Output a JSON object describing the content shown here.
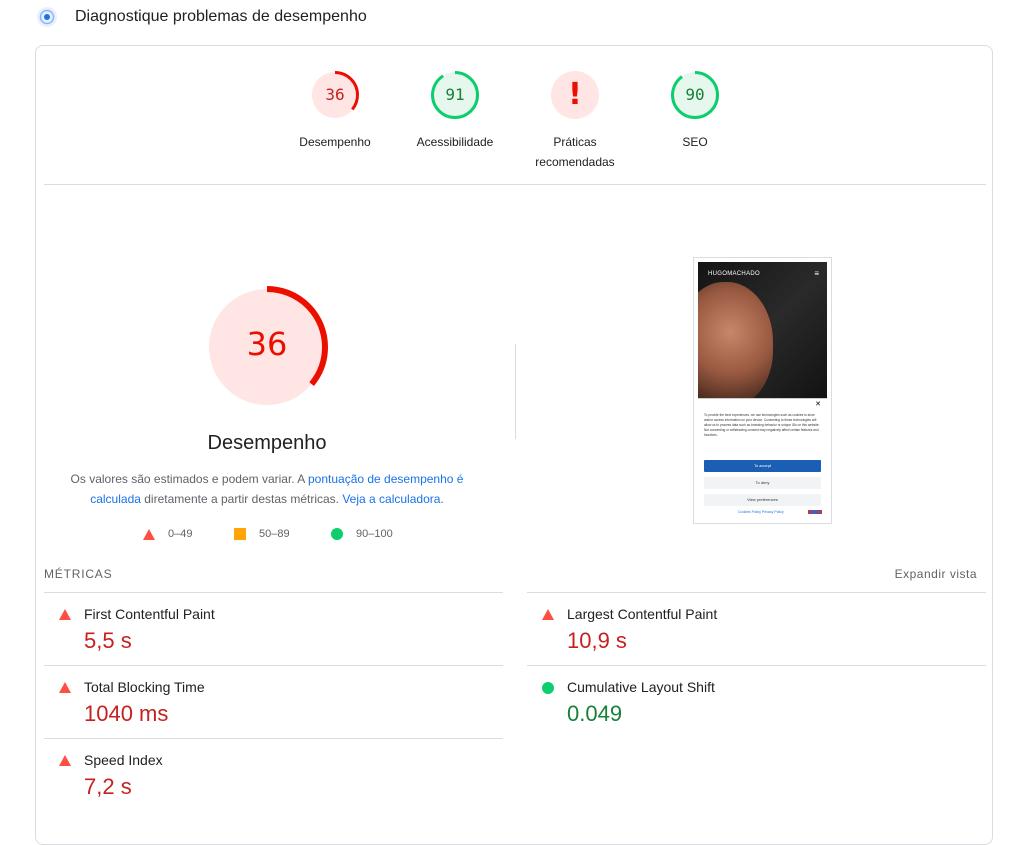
{
  "header": {
    "title": "Diagnostique problemas de desempenho",
    "icon": "performance-lighthouse-icon"
  },
  "categories": [
    {
      "score": "36",
      "label": "Desempenho",
      "status": "fail",
      "color": "#eb0f00"
    },
    {
      "score": "91",
      "label": "Acessibilidade",
      "status": "pass",
      "color": "#0cce6b"
    },
    {
      "score": "!",
      "label_line1": "Práticas",
      "label_line2": "recomendadas",
      "status": "error",
      "color": "#eb0f00"
    },
    {
      "score": "90",
      "label": "SEO",
      "status": "pass",
      "color": "#0cce6b"
    }
  ],
  "performance": {
    "score": "36",
    "score_fraction": 0.36,
    "label": "Desempenho",
    "desc_part1": "Os valores são estimados e podem variar. A ",
    "desc_link1": "pontuação de desempenho é calculada",
    "desc_part2": " diretamente a partir destas métricas. ",
    "desc_link2": "Veja a calculadora",
    "desc_end": "."
  },
  "legend": [
    {
      "range": "0–49",
      "shape": "triangle",
      "color": "#ff4e42"
    },
    {
      "range": "50–89",
      "shape": "square",
      "color": "#ffa400"
    },
    {
      "range": "90–100",
      "shape": "circle",
      "color": "#0cce6b"
    }
  ],
  "thumbnail": {
    "brand": "HUGOMACHADO",
    "menu_icon": "hamburger-icon",
    "modal_text": "To provide the best experiences, we use technologies such as cookies to store and/or access information on your device. Consenting to these technologies will allow us to process data such as browsing behavior or unique IDs on this website. Not consenting or withdrawing consent may negatively affect certain features and functions.",
    "accept": "To accept",
    "deny": "To deny",
    "preferences": "View preferences",
    "footer": "Cookies Policy   Privacy Policy"
  },
  "metrics_header": {
    "title": "MÉTRICAS",
    "expand": "Expandir vista"
  },
  "metrics": [
    {
      "label": "First Contentful Paint",
      "value": "5,5 s",
      "status": "fail"
    },
    {
      "label": "Largest Contentful Paint",
      "value": "10,9 s",
      "status": "fail"
    },
    {
      "label": "Total Blocking Time",
      "value": "1040 ms",
      "status": "fail"
    },
    {
      "label": "Cumulative Layout Shift",
      "value": "0.049",
      "status": "pass"
    },
    {
      "label": "Speed Index",
      "value": "7,2 s",
      "status": "fail"
    }
  ]
}
